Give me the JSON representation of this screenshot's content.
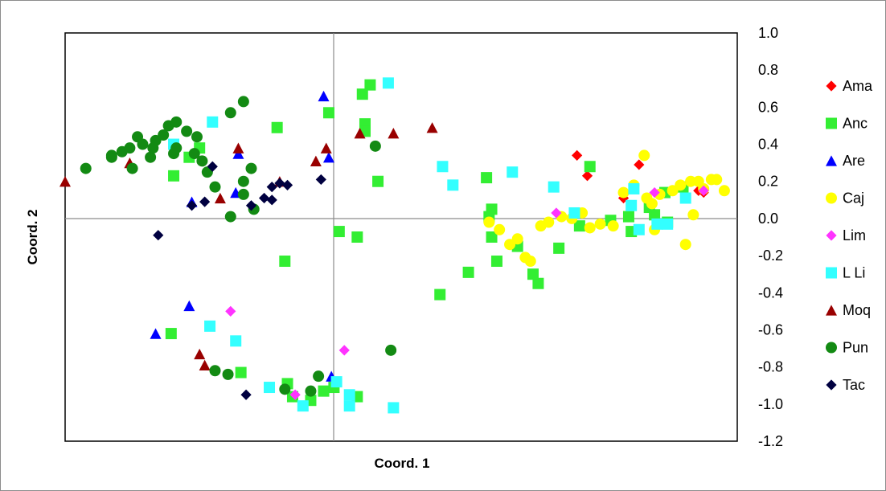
{
  "chart_data": {
    "type": "scatter",
    "title": "",
    "xlabel": "Coord. 1",
    "ylabel": "Coord. 2",
    "xlim": [
      -1.3,
      1.3
    ],
    "ylim": [
      -1.2,
      1.0
    ],
    "y_ticks": [
      "1.0",
      "0.8",
      "0.6",
      "0.4",
      "0.2",
      "0.0",
      "-0.2",
      "-0.4",
      "-0.6",
      "-0.8",
      "-1.0",
      "-1.2"
    ],
    "legend_position": "right",
    "grid": false,
    "series": [
      {
        "name": "Ama",
        "marker": "diamond",
        "color": "#ff0000",
        "points": [
          [
            0.68,
            0.34
          ],
          [
            0.72,
            0.23
          ],
          [
            0.92,
            0.29
          ],
          [
            0.86,
            0.11
          ],
          [
            1.15,
            0.15
          ],
          [
            1.17,
            0.14
          ]
        ]
      },
      {
        "name": "Anc",
        "marker": "square",
        "color": "#33ee33",
        "points": [
          [
            -0.12,
            0.72
          ],
          [
            -0.15,
            0.67
          ],
          [
            -0.14,
            0.51
          ],
          [
            -0.14,
            0.47
          ],
          [
            -0.28,
            0.57
          ],
          [
            -0.48,
            0.49
          ],
          [
            -0.78,
            0.38
          ],
          [
            -0.82,
            0.33
          ],
          [
            -0.88,
            0.23
          ],
          [
            -0.09,
            0.2
          ],
          [
            -0.45,
            -0.23
          ],
          [
            -0.24,
            -0.07
          ],
          [
            -0.17,
            -0.1
          ],
          [
            0.33,
            0.22
          ],
          [
            0.73,
            0.28
          ],
          [
            0.35,
            0.05
          ],
          [
            0.34,
            0.01
          ],
          [
            0.35,
            -0.1
          ],
          [
            0.45,
            -0.15
          ],
          [
            0.51,
            -0.3
          ],
          [
            0.53,
            -0.35
          ],
          [
            0.37,
            -0.23
          ],
          [
            0.26,
            -0.29
          ],
          [
            0.15,
            -0.41
          ],
          [
            0.61,
            -0.16
          ],
          [
            0.69,
            -0.04
          ],
          [
            0.81,
            -0.01
          ],
          [
            0.88,
            0.01
          ],
          [
            0.96,
            0.06
          ],
          [
            1.02,
            0.14
          ],
          [
            1.09,
            0.17
          ],
          [
            0.89,
            -0.07
          ],
          [
            0.98,
            0.02
          ],
          [
            1.03,
            -0.02
          ],
          [
            -0.89,
            -0.62
          ],
          [
            -0.62,
            -0.83
          ],
          [
            -0.44,
            -0.89
          ],
          [
            -0.42,
            -0.96
          ],
          [
            -0.35,
            -0.98
          ],
          [
            -0.3,
            -0.93
          ],
          [
            -0.26,
            -0.91
          ],
          [
            -0.17,
            -0.96
          ]
        ]
      },
      {
        "name": "Are",
        "marker": "triangle",
        "color": "#0000ff",
        "points": [
          [
            -0.3,
            0.66
          ],
          [
            -0.63,
            0.35
          ],
          [
            -0.28,
            0.33
          ],
          [
            -0.81,
            0.09
          ],
          [
            -0.64,
            0.14
          ],
          [
            -0.82,
            -0.47
          ],
          [
            -0.95,
            -0.62
          ],
          [
            -0.27,
            -0.85
          ]
        ]
      },
      {
        "name": "Caj",
        "marker": "circle",
        "color": "#ffff00",
        "points": [
          [
            0.34,
            -0.02
          ],
          [
            0.38,
            -0.06
          ],
          [
            0.42,
            -0.14
          ],
          [
            0.48,
            -0.21
          ],
          [
            0.5,
            -0.23
          ],
          [
            0.45,
            -0.11
          ],
          [
            0.54,
            -0.04
          ],
          [
            0.57,
            -0.02
          ],
          [
            0.62,
            0.01
          ],
          [
            0.66,
            0.0
          ],
          [
            0.7,
            0.03
          ],
          [
            0.73,
            -0.05
          ],
          [
            0.77,
            -0.03
          ],
          [
            0.82,
            -0.04
          ],
          [
            0.86,
            0.14
          ],
          [
            0.9,
            0.18
          ],
          [
            0.95,
            0.11
          ],
          [
            0.97,
            0.08
          ],
          [
            0.98,
            -0.06
          ],
          [
            1.0,
            0.13
          ],
          [
            1.05,
            0.15
          ],
          [
            1.08,
            0.18
          ],
          [
            1.12,
            0.2
          ],
          [
            1.15,
            0.2
          ],
          [
            1.17,
            0.16
          ],
          [
            1.2,
            0.21
          ],
          [
            1.22,
            0.21
          ],
          [
            1.1,
            -0.14
          ],
          [
            1.13,
            0.02
          ],
          [
            1.25,
            0.15
          ],
          [
            0.94,
            0.34
          ]
        ]
      },
      {
        "name": "Lim",
        "marker": "diamond",
        "color": "#ff33ff",
        "points": [
          [
            0.6,
            0.03
          ],
          [
            0.98,
            0.14
          ],
          [
            1.17,
            0.15
          ],
          [
            -0.66,
            -0.5
          ],
          [
            -0.22,
            -0.71
          ],
          [
            -0.41,
            -0.95
          ]
        ]
      },
      {
        "name": "L Li",
        "marker": "square",
        "color": "#33ffff",
        "points": [
          [
            -0.05,
            0.73
          ],
          [
            -0.73,
            0.52
          ],
          [
            -0.88,
            0.4
          ],
          [
            0.16,
            0.28
          ],
          [
            0.2,
            0.18
          ],
          [
            0.43,
            0.25
          ],
          [
            0.59,
            0.17
          ],
          [
            0.67,
            0.03
          ],
          [
            0.9,
            0.16
          ],
          [
            0.89,
            0.07
          ],
          [
            0.99,
            -0.03
          ],
          [
            0.92,
            -0.06
          ],
          [
            1.03,
            -0.03
          ],
          [
            1.1,
            0.11
          ],
          [
            -0.74,
            -0.58
          ],
          [
            -0.64,
            -0.66
          ],
          [
            -0.51,
            -0.91
          ],
          [
            -0.38,
            -1.01
          ],
          [
            -0.25,
            -0.88
          ],
          [
            -0.2,
            -0.95
          ],
          [
            -0.2,
            -1.01
          ],
          [
            -0.03,
            -1.02
          ]
        ]
      },
      {
        "name": "Moq",
        "marker": "triangle",
        "color": "#990000",
        "points": [
          [
            -1.3,
            0.2
          ],
          [
            -1.05,
            0.3
          ],
          [
            -0.63,
            0.38
          ],
          [
            -0.29,
            0.38
          ],
          [
            -0.33,
            0.31
          ],
          [
            -0.7,
            0.11
          ],
          [
            -0.47,
            0.2
          ],
          [
            -0.03,
            0.46
          ],
          [
            0.12,
            0.49
          ],
          [
            -0.16,
            0.46
          ],
          [
            -0.78,
            -0.73
          ],
          [
            -0.76,
            -0.79
          ]
        ]
      },
      {
        "name": "Pun",
        "marker": "circle",
        "color": "#138a13",
        "points": [
          [
            -1.22,
            0.27
          ],
          [
            -1.12,
            0.33
          ],
          [
            -1.08,
            0.36
          ],
          [
            -1.05,
            0.38
          ],
          [
            -1.02,
            0.44
          ],
          [
            -1.0,
            0.4
          ],
          [
            -0.97,
            0.33
          ],
          [
            -0.95,
            0.42
          ],
          [
            -0.92,
            0.45
          ],
          [
            -0.9,
            0.5
          ],
          [
            -0.87,
            0.52
          ],
          [
            -0.83,
            0.47
          ],
          [
            -0.79,
            0.44
          ],
          [
            -0.77,
            0.31
          ],
          [
            -0.88,
            0.35
          ],
          [
            -1.04,
            0.27
          ],
          [
            -1.12,
            0.34
          ],
          [
            -0.96,
            0.38
          ],
          [
            -0.87,
            0.38
          ],
          [
            -0.8,
            0.35
          ],
          [
            -0.75,
            0.25
          ],
          [
            -0.72,
            0.17
          ],
          [
            -0.66,
            0.57
          ],
          [
            -0.61,
            0.63
          ],
          [
            -0.58,
            0.27
          ],
          [
            -0.61,
            0.2
          ],
          [
            -0.61,
            0.13
          ],
          [
            -0.57,
            0.05
          ],
          [
            -0.66,
            0.01
          ],
          [
            -0.1,
            0.39
          ],
          [
            -0.72,
            -0.82
          ],
          [
            -0.67,
            -0.84
          ],
          [
            -0.45,
            -0.92
          ],
          [
            -0.35,
            -0.93
          ],
          [
            -0.32,
            -0.85
          ],
          [
            -0.04,
            -0.71
          ]
        ]
      },
      {
        "name": "Tac",
        "marker": "diamond",
        "color": "#000040",
        "points": [
          [
            -0.76,
            0.09
          ],
          [
            -0.81,
            0.07
          ],
          [
            -0.73,
            0.28
          ],
          [
            -0.58,
            0.07
          ],
          [
            -0.53,
            0.11
          ],
          [
            -0.5,
            0.17
          ],
          [
            -0.47,
            0.19
          ],
          [
            -0.44,
            0.18
          ],
          [
            -0.5,
            0.1
          ],
          [
            -0.31,
            0.21
          ],
          [
            -0.94,
            -0.09
          ],
          [
            -0.6,
            -0.95
          ]
        ]
      }
    ]
  }
}
